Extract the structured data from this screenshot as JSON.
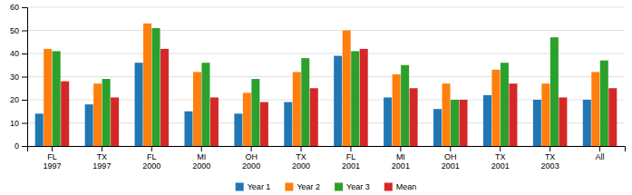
{
  "chart_data": {
    "type": "bar",
    "categories": [
      "FL\n1997",
      "TX\n1997",
      "FL\n2000",
      "MI\n2000",
      "OH\n2000",
      "TX\n2000",
      "FL\n2001",
      "MI\n2001",
      "OH\n2001",
      "TX\n2001",
      "TX\n2003",
      "All"
    ],
    "series": [
      {
        "name": "Year 1",
        "values": [
          14,
          18,
          36,
          15,
          14,
          19,
          39,
          21,
          16,
          22,
          20,
          20
        ]
      },
      {
        "name": "Year 2",
        "values": [
          42,
          27,
          53,
          32,
          23,
          32,
          50,
          31,
          27,
          33,
          27,
          32
        ]
      },
      {
        "name": "Year 3",
        "values": [
          41,
          29,
          51,
          36,
          29,
          38,
          41,
          35,
          20,
          36,
          47,
          37
        ]
      },
      {
        "name": "Mean",
        "values": [
          28,
          21,
          42,
          21,
          19,
          25,
          42,
          25,
          20,
          27,
          21,
          25
        ]
      }
    ],
    "ylim": [
      0,
      60
    ],
    "yticks": [
      0,
      10,
      20,
      30,
      40,
      50,
      60
    ],
    "grid": true,
    "legend": "bottom"
  }
}
